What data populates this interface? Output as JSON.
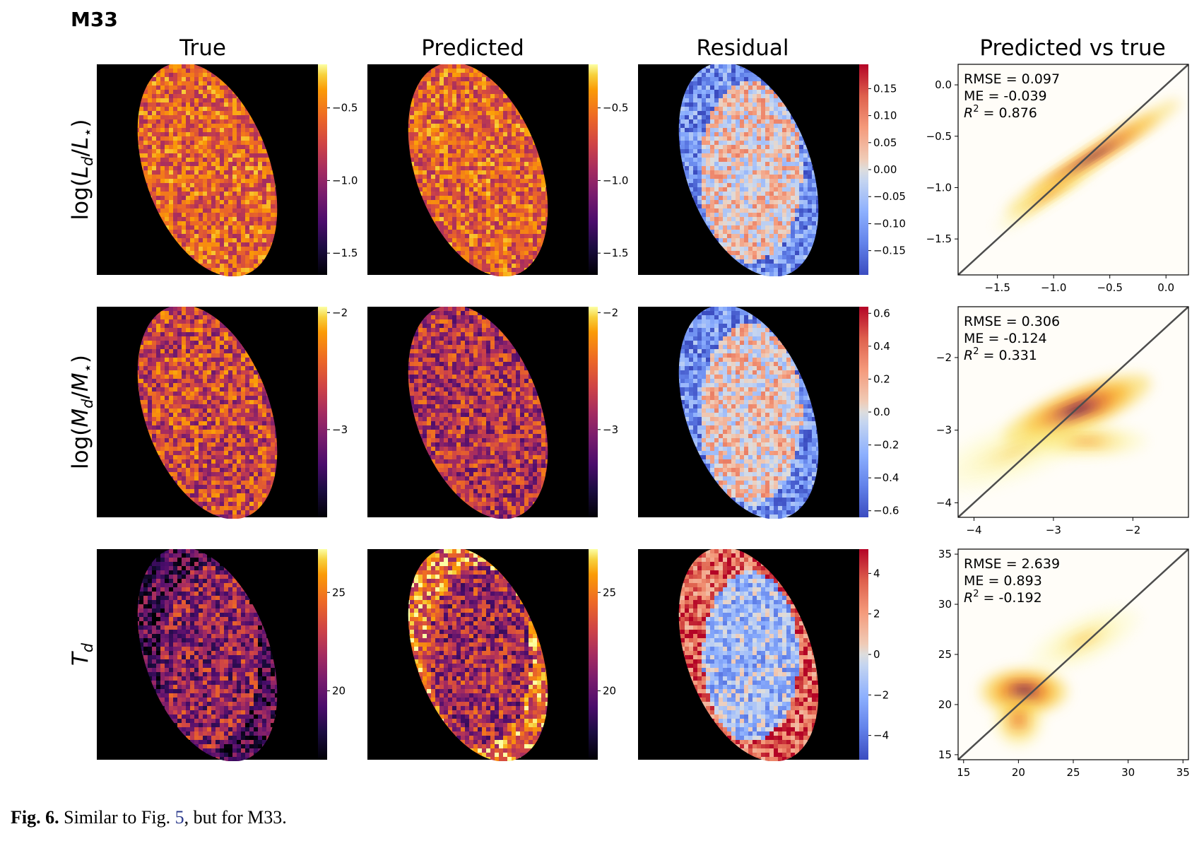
{
  "figure_title": "M33",
  "column_titles": [
    "True",
    "Predicted",
    "Residual",
    "Predicted vs true"
  ],
  "row_labels": [
    {
      "pre": "log(",
      "var": "L",
      "sub": "d",
      "mid": "/",
      "var2": "L",
      "sub2": "⋆",
      "post": ")"
    },
    {
      "pre": "log(",
      "var": "M",
      "sub": "d",
      "mid": "/",
      "var2": "M",
      "sub2": "⋆",
      "post": ")"
    },
    {
      "pre": "",
      "var": "T",
      "sub": "d",
      "mid": "",
      "var2": "",
      "sub2": "",
      "post": ""
    }
  ],
  "colors": {
    "map_background": "#000000",
    "identity_line": "#4d4d4d",
    "density_peak": "#2a0a3d",
    "caption_ref": "#2b3a8c"
  },
  "colormaps": {
    "maps": "inferno",
    "residual": "coolwarm"
  },
  "colorbars": [
    {
      "map": {
        "ticks": [
          "−0.5",
          "−1.0",
          "−1.5"
        ],
        "tick_values": [
          -0.5,
          -1.0,
          -1.5
        ],
        "range": [
          -1.65,
          -0.2
        ]
      },
      "residual": {
        "ticks": [
          "0.15",
          "0.10",
          "0.05",
          "0.00",
          "−0.05",
          "−0.10",
          "−0.15"
        ],
        "tick_values": [
          0.15,
          0.1,
          0.05,
          0.0,
          -0.05,
          -0.1,
          -0.15
        ],
        "range": [
          -0.195,
          0.195
        ]
      }
    },
    {
      "map": {
        "ticks": [
          "−2",
          "−3"
        ],
        "tick_values": [
          -2,
          -3
        ],
        "range": [
          -3.75,
          -1.95
        ]
      },
      "residual": {
        "ticks": [
          "0.6",
          "0.4",
          "0.2",
          "0.0",
          "−0.2",
          "−0.4",
          "−0.6"
        ],
        "tick_values": [
          0.6,
          0.4,
          0.2,
          0.0,
          -0.2,
          -0.4,
          -0.6
        ],
        "range": [
          -0.64,
          0.64
        ]
      }
    },
    {
      "map": {
        "ticks": [
          "25",
          "20"
        ],
        "tick_values": [
          25,
          20
        ],
        "range": [
          16.5,
          27.2
        ]
      },
      "residual": {
        "ticks": [
          "4",
          "2",
          "0",
          "−2",
          "−4"
        ],
        "tick_values": [
          4,
          2,
          0,
          -2,
          -4
        ],
        "range": [
          -5.2,
          5.2
        ]
      }
    }
  ],
  "chart_data": [
    {
      "type": "heatmap",
      "title": "Predicted vs true",
      "row": "log(Ld/L*)",
      "x_ticks": [
        "−1.5",
        "−1.0",
        "−0.5",
        "0.0"
      ],
      "x_tick_values": [
        -1.5,
        -1.0,
        -0.5,
        0.0
      ],
      "y_ticks": [
        "0.0",
        "−0.5",
        "−1.0",
        "−1.5"
      ],
      "y_tick_values": [
        0.0,
        -0.5,
        -1.0,
        -1.5
      ],
      "xlim": [
        -1.85,
        0.2
      ],
      "ylim": [
        -1.85,
        0.2
      ],
      "stats": [
        "RMSE = 0.097",
        "ME = -0.039",
        "0.876"
      ],
      "identity_line": true,
      "density_components": [
        {
          "x": -0.65,
          "y": -0.7,
          "sx": 0.42,
          "sy": 0.045,
          "angle_deg": 33,
          "w": 1.0
        },
        {
          "x": -1.05,
          "y": -1.08,
          "sx": 0.25,
          "sy": 0.04,
          "angle_deg": 33,
          "w": 0.35
        }
      ]
    },
    {
      "type": "heatmap",
      "title": "Predicted vs true",
      "row": "log(Md/M*)",
      "x_ticks": [
        "−4",
        "−3",
        "−2"
      ],
      "x_tick_values": [
        -4,
        -3,
        -2
      ],
      "y_ticks": [
        "−2",
        "−3",
        "−4"
      ],
      "y_tick_values": [
        -2,
        -3,
        -4
      ],
      "xlim": [
        -4.2,
        -1.3
      ],
      "ylim": [
        -4.2,
        -1.3
      ],
      "stats": [
        "RMSE = 0.306",
        "ME = -0.124",
        "0.331"
      ],
      "identity_line": true,
      "density_components": [
        {
          "x": -2.7,
          "y": -2.72,
          "sx": 0.45,
          "sy": 0.13,
          "angle_deg": 22,
          "w": 1.0
        },
        {
          "x": -2.6,
          "y": -3.15,
          "sx": 0.35,
          "sy": 0.1,
          "angle_deg": 0,
          "w": 0.3
        },
        {
          "x": -3.5,
          "y": -3.3,
          "sx": 0.5,
          "sy": 0.18,
          "angle_deg": 20,
          "w": 0.1
        }
      ]
    },
    {
      "type": "heatmap",
      "title": "Predicted vs true",
      "row": "Td",
      "x_ticks": [
        "15",
        "20",
        "25",
        "30",
        "35"
      ],
      "x_tick_values": [
        15,
        20,
        25,
        30,
        35
      ],
      "y_ticks": [
        "35",
        "30",
        "25",
        "20",
        "15"
      ],
      "y_tick_values": [
        35,
        30,
        25,
        20,
        15
      ],
      "xlim": [
        14.5,
        35.5
      ],
      "ylim": [
        14.5,
        35.5
      ],
      "stats": [
        "RMSE = 2.639",
        "ME = 0.893",
        "-0.192"
      ],
      "identity_line": true,
      "density_components": [
        {
          "x": 20.5,
          "y": 21.3,
          "sx": 1.8,
          "sy": 1.0,
          "angle_deg": 0,
          "w": 1.0
        },
        {
          "x": 20.0,
          "y": 18.5,
          "sx": 1.0,
          "sy": 1.2,
          "angle_deg": 0,
          "w": 0.45
        },
        {
          "x": 26.0,
          "y": 26.5,
          "sx": 2.5,
          "sy": 1.0,
          "angle_deg": 25,
          "w": 0.15
        }
      ]
    }
  ],
  "caption": {
    "label": "Fig. 6.",
    "text_before": " Similar to Fig. ",
    "ref": "5",
    "text_after": ", but for M33."
  }
}
